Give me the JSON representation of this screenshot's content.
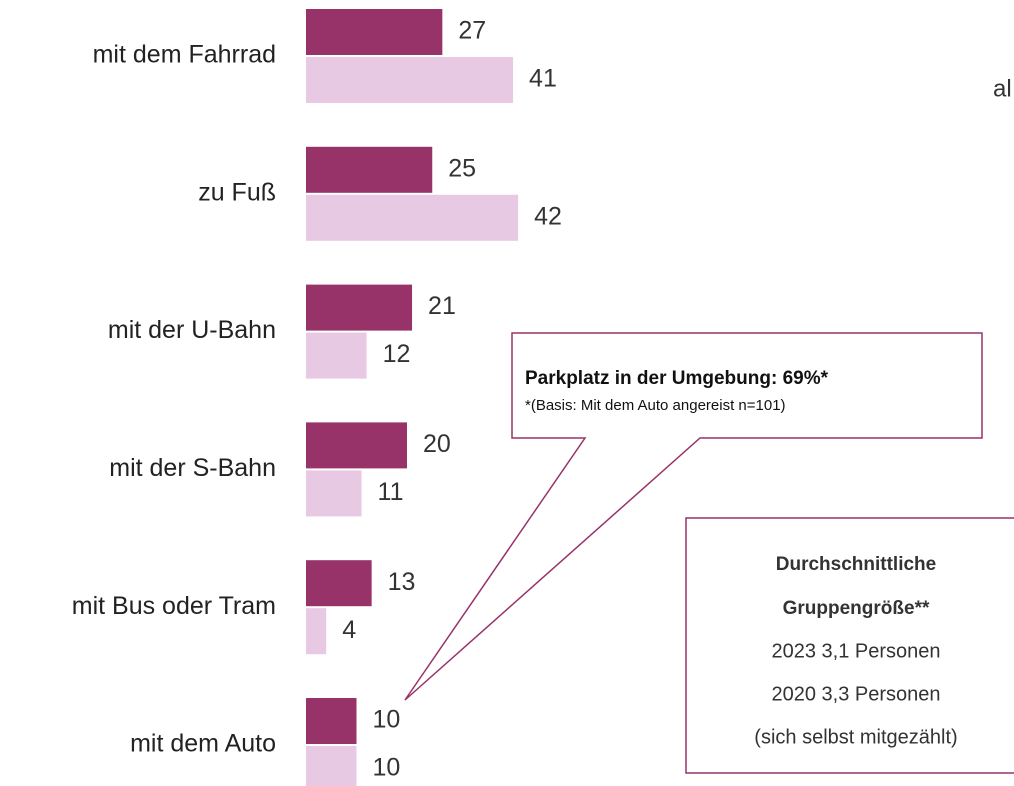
{
  "chart_data": {
    "type": "bar",
    "orientation": "horizontal",
    "categories": [
      "mit dem Fahrrad",
      "zu Fuß",
      "mit der U-Bahn",
      "mit der S-Bahn",
      "mit Bus oder Tram",
      "mit dem Auto"
    ],
    "series": [
      {
        "color": "#98336a",
        "values": [
          27,
          25,
          21,
          20,
          13,
          10
        ]
      },
      {
        "color": "#e8c9e3",
        "values": [
          41,
          42,
          12,
          11,
          4,
          10
        ]
      }
    ],
    "annotations": [
      {
        "title": "Parkplatz in der Umgebung: 69%*",
        "note": "*(Basis: Mit dem Auto angereist n=101)"
      },
      {
        "lines": [
          "Durchschnittliche",
          "Gruppengröße**",
          "2023 3,1 Personen",
          "2020 3,3 Personen",
          "(sich selbst mitgezählt)"
        ]
      },
      {
        "text": "al"
      }
    ]
  }
}
